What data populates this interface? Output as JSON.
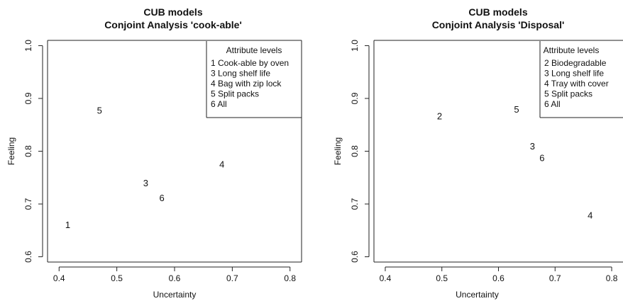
{
  "chart_data": [
    {
      "type": "scatter",
      "title": "CUB models",
      "subtitle": "Conjoint Analysis 'cook-able'",
      "xlabel": "Uncertainty",
      "ylabel": "Feeling",
      "xlim": [
        0.38,
        0.82
      ],
      "ylim": [
        0.59,
        1.01
      ],
      "x_ticks": [
        0.4,
        0.5,
        0.6,
        0.7,
        0.8
      ],
      "y_ticks": [
        0.6,
        0.7,
        0.8,
        0.9,
        1.0
      ],
      "x_tick_labels": [
        "0.4",
        "0.5",
        "0.6",
        "0.7",
        "0.8"
      ],
      "y_tick_labels": [
        "0.6",
        "0.7",
        "0.8",
        "0.9",
        "1.0"
      ],
      "grid": false,
      "legend_position": "top-right",
      "legend_title": "Attribute levels",
      "legend": [
        "1 Cook-able by oven",
        "3 Long shelf life",
        "4 Bag with zip lock",
        "5 Split packs",
        "6 All"
      ],
      "points": [
        {
          "label": "1",
          "x": 0.415,
          "y": 0.661
        },
        {
          "label": "3",
          "x": 0.55,
          "y": 0.74
        },
        {
          "label": "4",
          "x": 0.682,
          "y": 0.776
        },
        {
          "label": "5",
          "x": 0.47,
          "y": 0.878
        },
        {
          "label": "6",
          "x": 0.578,
          "y": 0.712
        }
      ]
    },
    {
      "type": "scatter",
      "title": "CUB models",
      "subtitle": "Conjoint Analysis 'Disposal'",
      "xlabel": "Uncertainty",
      "ylabel": "Feeling",
      "xlim": [
        0.38,
        0.82
      ],
      "ylim": [
        0.59,
        1.01
      ],
      "x_ticks": [
        0.4,
        0.5,
        0.6,
        0.7,
        0.8
      ],
      "y_ticks": [
        0.6,
        0.7,
        0.8,
        0.9,
        1.0
      ],
      "x_tick_labels": [
        "0.4",
        "0.5",
        "0.6",
        "0.7",
        "0.8"
      ],
      "y_tick_labels": [
        "0.6",
        "0.7",
        "0.8",
        "0.9",
        "1.0"
      ],
      "grid": false,
      "legend_position": "top-right",
      "legend_title": "Attribute levels",
      "legend": [
        "2 Biodegradable",
        "3 Long shelf life",
        "4 Tray with cover",
        "5 Split packs",
        "6 All"
      ],
      "points": [
        {
          "label": "2",
          "x": 0.496,
          "y": 0.867
        },
        {
          "label": "3",
          "x": 0.66,
          "y": 0.81
        },
        {
          "label": "4",
          "x": 0.762,
          "y": 0.679
        },
        {
          "label": "5",
          "x": 0.632,
          "y": 0.88
        },
        {
          "label": "6",
          "x": 0.677,
          "y": 0.788
        }
      ]
    }
  ]
}
